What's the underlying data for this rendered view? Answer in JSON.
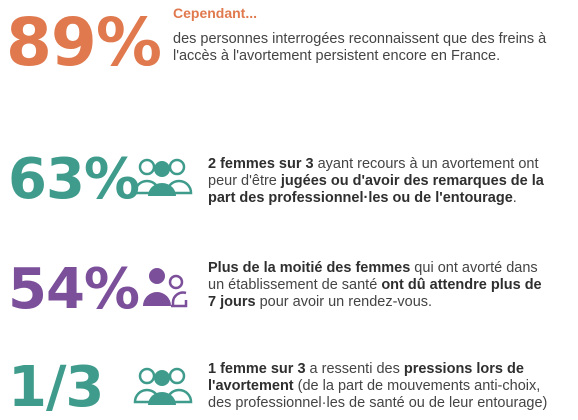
{
  "colors": {
    "orange": "#e0794e",
    "teal": "#3f9c8c",
    "purple": "#7b4f9a",
    "text": "#444444"
  },
  "stat1": {
    "value": "89%",
    "kicker": "Cependant...",
    "text": "des personnes interrogées reconnaissent que des freins à l'accès à l'avortement persistent encore en France."
  },
  "stat2": {
    "value": "63%",
    "icon": "group-icon",
    "t1": "2 femmes sur 3",
    "t2": " ayant recours à un avortement ont peur d'être ",
    "t3": "jugées ou d'avoir des remarques de la part des professionnel·les ou de l'entourage",
    "t4": "."
  },
  "stat3": {
    "value": "54%",
    "icon": "pair-icon",
    "t1": "Plus de la moitié des femmes",
    "t2": "  qui ont avorté dans un établissement de santé ",
    "t3": "ont dû attendre plus de 7 jours",
    "t4": " pour avoir un rendez-vous."
  },
  "stat4": {
    "value": "1/3",
    "icon": "group-icon",
    "t1": "1 femme sur 3",
    "t2": " a ressenti des ",
    "t3": "pressions lors de l'avortement",
    "t4": " (de la part de mouvements anti-choix, des professionnel·les de santé ou de leur entourage)"
  }
}
